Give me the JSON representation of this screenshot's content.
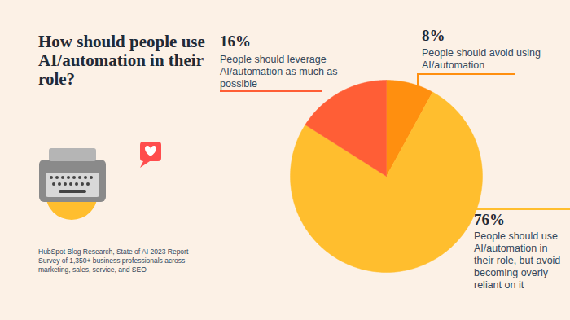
{
  "chart_data": {
    "type": "pie",
    "title": "How should people use AI/automation in their role?",
    "categories": [
      "People should avoid using AI/automation",
      "People should use AI/automation in their role, but avoid becoming overly reliant on it",
      "People should leverage AI/automation as much as possible"
    ],
    "values": [
      8,
      76,
      16
    ],
    "value_labels": [
      "8%",
      "76%",
      "16%"
    ],
    "colors": [
      "#ff8f0f",
      "#ffbe2e",
      "#ff5e36"
    ],
    "data_labels": true,
    "caption": [
      "HubSpot Blog Research, State of AI 2023 Report",
      "Survey of 1,350+ business professionals across marketing, sales, service, and SEO"
    ]
  }
}
